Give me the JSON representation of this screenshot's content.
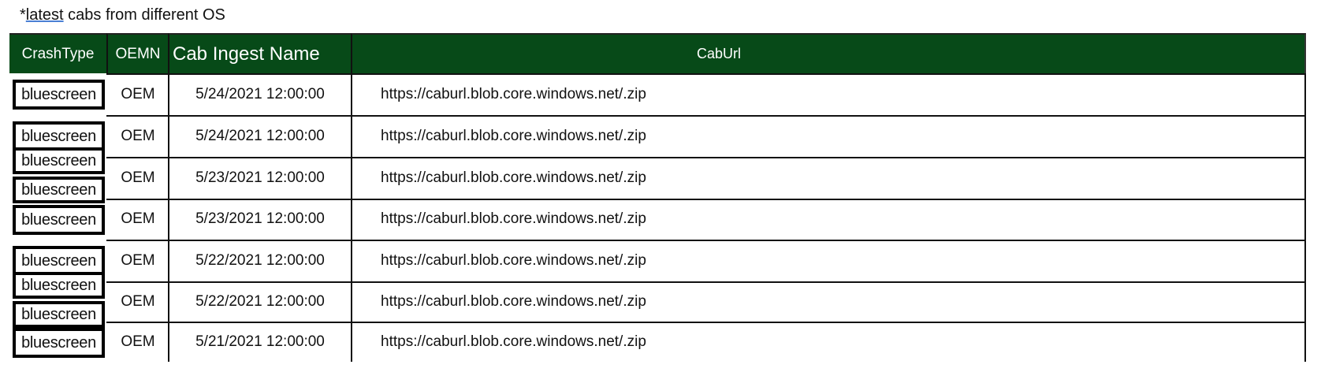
{
  "caption": {
    "prefix": "*",
    "underlined": "latest",
    "rest": " cabs from different OS"
  },
  "colors": {
    "header_bg": "#074a18",
    "header_text": "#ffffff"
  },
  "table": {
    "headers": {
      "crash_type": "CrashType",
      "oemn": "OEMN",
      "cab_ingest_name": "Cab Ingest Name",
      "cab_url": "CabUrl"
    },
    "rows": [
      {
        "crash_types": [
          "bluescreen"
        ],
        "oemn": "OEM",
        "cab_ingest_name": "5/24/2021 12:00:00",
        "cab_url": "https://caburl.blob.core.windows.net/.zip"
      },
      {
        "crash_types": [
          "bluescreen"
        ],
        "oemn": "OEM",
        "cab_ingest_name": "5/24/2021 12:00:00",
        "cab_url": "https://caburl.blob.core.windows.net/.zip"
      },
      {
        "crash_types": [
          "bluescreen",
          "bluescreen"
        ],
        "oemn": "OEM",
        "cab_ingest_name": "5/23/2021 12:00:00",
        "cab_url": "https://caburl.blob.core.windows.net/.zip"
      },
      {
        "crash_types": [
          "bluescreen"
        ],
        "oemn": "OEM",
        "cab_ingest_name": "5/23/2021 12:00:00",
        "cab_url": "https://caburl.blob.core.windows.net/.zip"
      },
      {
        "crash_types": [
          "bluescreen"
        ],
        "oemn": "OEM",
        "cab_ingest_name": "5/22/2021 12:00:00",
        "cab_url": "https://caburl.blob.core.windows.net/.zip"
      },
      {
        "crash_types": [
          "bluescreen",
          "bluescreen"
        ],
        "oemn": "OEM",
        "cab_ingest_name": "5/22/2021 12:00:00",
        "cab_url": "https://caburl.blob.core.windows.net/.zip"
      },
      {
        "crash_types": [
          "bluescreen"
        ],
        "oemn": "OEM",
        "cab_ingest_name": "5/21/2021 12:00:00",
        "cab_url": "https://caburl.blob.core.windows.net/.zip"
      }
    ]
  }
}
